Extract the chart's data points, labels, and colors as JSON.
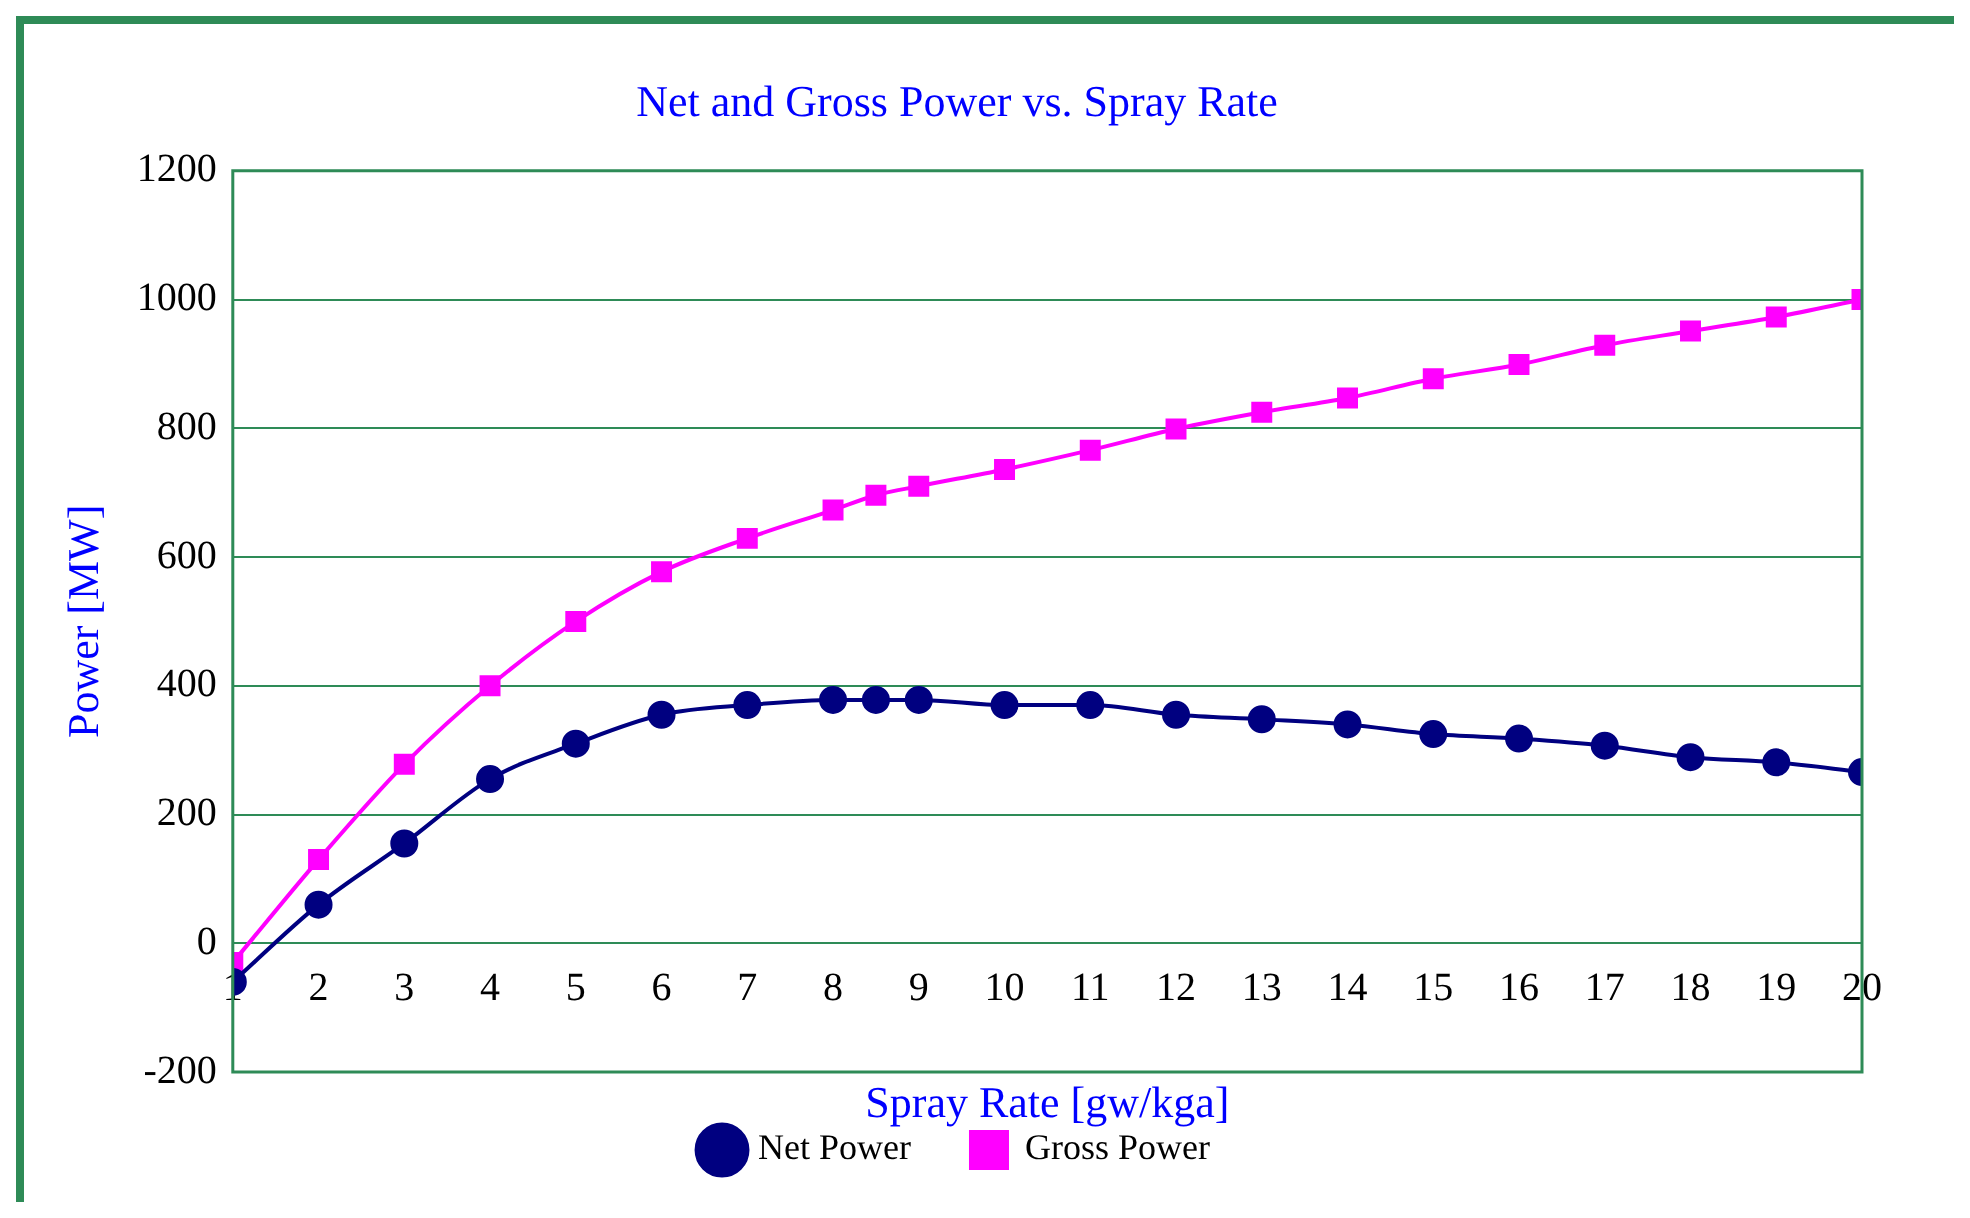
{
  "chart_data": {
    "type": "line",
    "title": "Net and Gross Power vs. Spray Rate",
    "xlabel": "Spray Rate [gw/kga]",
    "ylabel": "Power [MW]",
    "x": [
      1,
      2,
      3,
      4,
      5,
      6,
      7,
      8,
      8.5,
      9,
      10,
      11,
      12,
      13,
      14,
      15,
      16,
      17,
      18,
      19,
      20
    ],
    "series": [
      {
        "name": "Net Power",
        "color": "#000080",
        "marker": "circle",
        "values": [
          -60,
          60,
          155,
          255,
          310,
          355,
          370,
          378,
          378,
          378,
          370,
          370,
          355,
          348,
          340,
          325,
          318,
          307,
          289,
          281,
          266
        ]
      },
      {
        "name": "Gross Power",
        "color": "#ff00ff",
        "marker": "square",
        "values": [
          -30,
          130,
          278,
          400,
          500,
          577,
          629,
          673,
          696,
          710,
          736,
          766,
          799,
          825,
          847,
          877,
          899,
          929,
          951,
          973,
          1000
        ]
      }
    ],
    "xlim": [
      1,
      20
    ],
    "xticks": [
      1,
      2,
      3,
      4,
      5,
      6,
      7,
      8,
      9,
      10,
      11,
      12,
      13,
      14,
      15,
      16,
      17,
      18,
      19,
      20
    ],
    "ylim": [
      -200,
      1200
    ],
    "yticks": [
      -200,
      0,
      200,
      400,
      600,
      800,
      1000,
      1200
    ],
    "grid": "y",
    "legend": "bottom",
    "line_style": "solid"
  }
}
